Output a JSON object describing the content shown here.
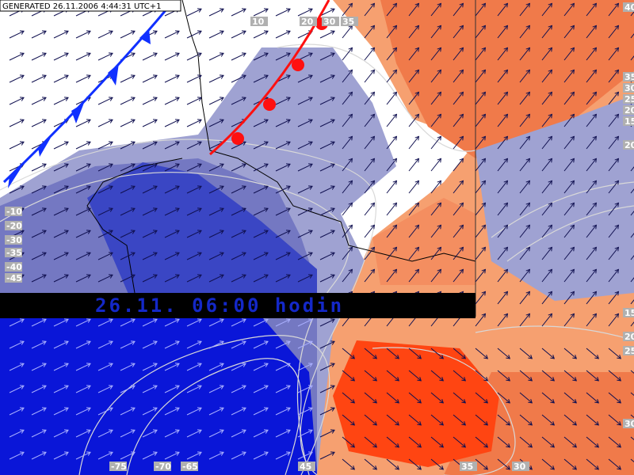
{
  "header": {
    "generated": "GENERATED 26.11.2006 4:44:31 UTC+1"
  },
  "banner": {
    "text": "26.11. 06:00 hodin"
  },
  "contour_labels": {
    "top": [
      "10",
      "20",
      "30",
      "35",
      "40"
    ],
    "right": [
      "35",
      "30",
      "25",
      "20",
      "15",
      "20",
      "15",
      "20",
      "25",
      "30"
    ],
    "left": [
      "-10",
      "-20",
      "-30",
      "-35",
      "-40",
      "-45"
    ],
    "bottom": [
      "-75",
      "-70",
      "-65",
      "45",
      "35",
      "30"
    ]
  }
}
